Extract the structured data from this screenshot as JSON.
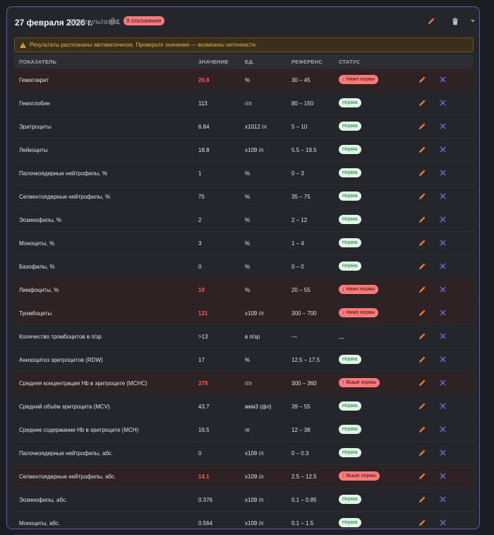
{
  "header": {
    "date": "27 февраля 2026 г.",
    "count": "39 результатов",
    "attach_count": "1",
    "deviations_badge": "9 отклонения"
  },
  "warning": {
    "text": "Результаты распознаны автоматически. Проверьте значения — возможны неточности.",
    "color": "#e6b24a"
  },
  "table": {
    "headers": {
      "name": "ПОКАЗАТЕЛЬ",
      "value": "ЗНАЧЕНИЕ",
      "unit": "ЕД.",
      "ref": "РЕФЕРЕНС",
      "status": "СТАТУС"
    },
    "rows": [
      {
        "name": "Гематокрит",
        "value": "29.8",
        "unit": "%",
        "ref": "30 – 45",
        "status": "↓ Ниже нормы",
        "state": "low"
      },
      {
        "name": "Гемоглобин",
        "value": "113",
        "unit": "г/л",
        "ref": "80 – 150",
        "status": "Норма",
        "state": "norm"
      },
      {
        "name": "Эритроциты",
        "value": "6.84",
        "unit": "x1012 /л",
        "ref": "5 – 10",
        "status": "Норма",
        "state": "norm"
      },
      {
        "name": "Лейкоциты",
        "value": "18.8",
        "unit": "x109 /л",
        "ref": "5.5 – 19.5",
        "status": "Норма",
        "state": "norm"
      },
      {
        "name": "Палочкоядерные нейтрофилы, %",
        "value": "1",
        "unit": "%",
        "ref": "0 – 3",
        "status": "Норма",
        "state": "norm"
      },
      {
        "name": "Сегментоядерные нейтрофилы, %",
        "value": "75",
        "unit": "%",
        "ref": "35 – 75",
        "status": "Норма",
        "state": "norm"
      },
      {
        "name": "Эозинофилы, %",
        "value": "2",
        "unit": "%",
        "ref": "2 – 12",
        "status": "Норма",
        "state": "norm"
      },
      {
        "name": "Моноциты, %",
        "value": "3",
        "unit": "%",
        "ref": "1 – 4",
        "status": "Норма",
        "state": "norm"
      },
      {
        "name": "Базофилы, %",
        "value": "0",
        "unit": "%",
        "ref": "0 – 0",
        "status": "Норма",
        "state": "norm"
      },
      {
        "name": "Лимфоциты, %",
        "value": "19",
        "unit": "%",
        "ref": "20 – 55",
        "status": "↓ Ниже нормы",
        "state": "low"
      },
      {
        "name": "Тромбоциты",
        "value": "121",
        "unit": "x109 /л",
        "ref": "300 – 700",
        "status": "↓ Ниже нормы",
        "state": "low"
      },
      {
        "name": "Количество тромбоцитов в п/зр",
        "value": ">13",
        "unit": "в п/зр",
        "ref": "—",
        "status": "—",
        "state": "dash"
      },
      {
        "name": "Анизоцитоз эритроцитов (RDW)",
        "value": "17",
        "unit": "%",
        "ref": "12.5 – 17.5",
        "status": "Норма",
        "state": "norm"
      },
      {
        "name": "Средняя концентрация Hb в эритроците (MCHC)",
        "value": "379",
        "unit": "г/л",
        "ref": "300 – 360",
        "status": "↑ Выше нормы",
        "state": "high"
      },
      {
        "name": "Средний объём эритроцита (MCV)",
        "value": "43.7",
        "unit": "мкм3 (фл)",
        "ref": "39 – 55",
        "status": "Норма",
        "state": "norm"
      },
      {
        "name": "Среднее содержание Hb в эритроците (MCH)",
        "value": "16.5",
        "unit": "пг",
        "ref": "12 – 38",
        "status": "Норма",
        "state": "norm"
      },
      {
        "name": "Палочкоядерные нейтрофилы, абс.",
        "value": "0",
        "unit": "x109 /л",
        "ref": "0 – 0.3",
        "status": "Норма",
        "state": "norm"
      },
      {
        "name": "Сегментоядерные нейтрофилы, абс.",
        "value": "14.1",
        "unit": "x109 /л",
        "ref": "2.5 – 12.5",
        "status": "↑ Выше нормы",
        "state": "high"
      },
      {
        "name": "Эозинофилы, абс.",
        "value": "0.376",
        "unit": "x109 /л",
        "ref": "0.1 – 0.85",
        "status": "Норма",
        "state": "norm"
      },
      {
        "name": "Моноциты, абс.",
        "value": "0.564",
        "unit": "x109 /л",
        "ref": "0.1 – 1.5",
        "status": "Норма",
        "state": "norm"
      }
    ]
  },
  "colors": {
    "accent_border": "#5b5fb0",
    "abnormal_value": "#ff5a52",
    "edit_icon": "#f07a3a",
    "delete_icon": "#6a70e0"
  },
  "icons": {
    "edit": "pencil-icon",
    "delete": "close-icon",
    "trash": "trash-icon",
    "collapse": "chevron-down-icon",
    "attachment": "paperclip-icon",
    "warning": "warning-icon"
  }
}
